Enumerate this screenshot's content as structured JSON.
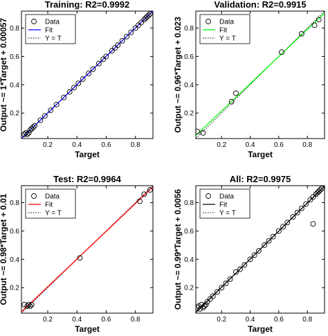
{
  "chart_data": [
    {
      "type": "scatter",
      "title": "Training: R2=0.9992",
      "xlabel": "Target",
      "ylabel": "Output ~= 1*Target + 0.00057",
      "xlim": [
        0.02,
        0.92
      ],
      "ylim": [
        0.02,
        0.92
      ],
      "xticks": [
        "0.2",
        "0.4",
        "0.6",
        "0.8"
      ],
      "yticks": [
        "0.2",
        "0.4",
        "0.6",
        "0.8"
      ],
      "grid": false,
      "legend": {
        "position": "top-left",
        "entries": [
          "Data",
          "Fit",
          "Y = T"
        ]
      },
      "fit": {
        "slope": 1.0,
        "intercept": 0.00057,
        "color": "#0000ff"
      },
      "series": [
        {
          "name": "Data",
          "x": [
            0.04,
            0.05,
            0.06,
            0.07,
            0.08,
            0.09,
            0.1,
            0.11,
            0.15,
            0.18,
            0.22,
            0.26,
            0.31,
            0.35,
            0.38,
            0.41,
            0.44,
            0.48,
            0.51,
            0.55,
            0.58,
            0.6,
            0.64,
            0.66,
            0.68,
            0.71,
            0.74,
            0.77,
            0.8,
            0.82,
            0.84,
            0.86,
            0.87,
            0.88,
            0.89,
            0.9
          ],
          "y": [
            0.05,
            0.06,
            0.05,
            0.06,
            0.08,
            0.09,
            0.1,
            0.11,
            0.15,
            0.18,
            0.22,
            0.26,
            0.31,
            0.35,
            0.38,
            0.41,
            0.44,
            0.48,
            0.51,
            0.55,
            0.58,
            0.6,
            0.64,
            0.66,
            0.68,
            0.71,
            0.74,
            0.77,
            0.8,
            0.82,
            0.84,
            0.86,
            0.87,
            0.88,
            0.89,
            0.9
          ]
        }
      ]
    },
    {
      "type": "scatter",
      "title": "Validation: R2=0.9915",
      "xlabel": "Target",
      "ylabel": "Output ~= 0.96*Target + 0.023",
      "xlim": [
        0.02,
        0.92
      ],
      "ylim": [
        0.02,
        0.92
      ],
      "xticks": [
        "0.2",
        "0.4",
        "0.6",
        "0.8"
      ],
      "yticks": [
        "0.2",
        "0.4",
        "0.6",
        "0.8"
      ],
      "grid": false,
      "legend": {
        "position": "top-left",
        "entries": [
          "Data",
          "Fit",
          "Y = T"
        ]
      },
      "fit": {
        "slope": 0.96,
        "intercept": 0.023,
        "color": "#00ff00"
      },
      "series": [
        {
          "name": "Data",
          "x": [
            0.03,
            0.07,
            0.27,
            0.3,
            0.62,
            0.76,
            0.85,
            0.88
          ],
          "y": [
            0.07,
            0.06,
            0.28,
            0.34,
            0.63,
            0.76,
            0.82,
            0.86
          ]
        }
      ]
    },
    {
      "type": "scatter",
      "title": "Test: R2=0.9964",
      "xlabel": "Target",
      "ylabel": "Output ~= 0.98*Target + 0.01",
      "xlim": [
        0.02,
        0.92
      ],
      "ylim": [
        0.02,
        0.92
      ],
      "xticks": [
        "0.2",
        "0.4",
        "0.6",
        "0.8"
      ],
      "yticks": [
        "0.2",
        "0.4",
        "0.6",
        "0.8"
      ],
      "grid": false,
      "legend": {
        "position": "top-left",
        "entries": [
          "Data",
          "Fit",
          "Y = T"
        ]
      },
      "fit": {
        "slope": 0.98,
        "intercept": 0.01,
        "color": "#ff0000"
      },
      "series": [
        {
          "name": "Data",
          "x": [
            0.04,
            0.06,
            0.07,
            0.08,
            0.09,
            0.42,
            0.83,
            0.86,
            0.9
          ],
          "y": [
            0.08,
            0.07,
            0.08,
            0.07,
            0.08,
            0.41,
            0.81,
            0.86,
            0.89
          ]
        }
      ]
    },
    {
      "type": "scatter",
      "title": "All: R2=0.9975",
      "xlabel": "Target",
      "ylabel": "Output ~= 0.99*Target + 0.0056",
      "xlim": [
        0.02,
        0.92
      ],
      "ylim": [
        0.02,
        0.92
      ],
      "xticks": [
        "0.2",
        "0.4",
        "0.6",
        "0.8"
      ],
      "yticks": [
        "0.2",
        "0.4",
        "0.6",
        "0.8"
      ],
      "grid": false,
      "legend": {
        "position": "top-left",
        "entries": [
          "Data",
          "Fit",
          "Y = T"
        ]
      },
      "fit": {
        "slope": 0.99,
        "intercept": 0.0056,
        "color": "#000000"
      },
      "series": [
        {
          "name": "Data",
          "x": [
            0.03,
            0.04,
            0.05,
            0.06,
            0.07,
            0.08,
            0.09,
            0.1,
            0.12,
            0.14,
            0.17,
            0.2,
            0.23,
            0.26,
            0.3,
            0.33,
            0.36,
            0.4,
            0.43,
            0.46,
            0.5,
            0.53,
            0.56,
            0.6,
            0.63,
            0.66,
            0.7,
            0.73,
            0.76,
            0.79,
            0.82,
            0.84,
            0.86,
            0.87,
            0.88,
            0.89,
            0.9,
            0.84
          ],
          "y": [
            0.06,
            0.07,
            0.05,
            0.08,
            0.06,
            0.07,
            0.08,
            0.1,
            0.12,
            0.14,
            0.17,
            0.2,
            0.23,
            0.26,
            0.31,
            0.33,
            0.36,
            0.4,
            0.43,
            0.46,
            0.5,
            0.53,
            0.56,
            0.6,
            0.63,
            0.66,
            0.7,
            0.73,
            0.76,
            0.79,
            0.82,
            0.84,
            0.86,
            0.87,
            0.88,
            0.89,
            0.9,
            0.65
          ]
        }
      ]
    }
  ]
}
